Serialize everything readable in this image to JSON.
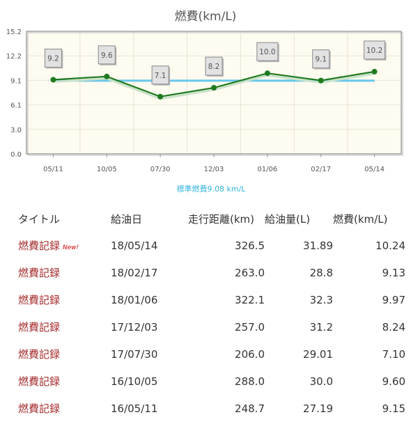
{
  "chart_data": {
    "type": "line",
    "title": "燃費(km/L)",
    "categories": [
      "05/11",
      "10/05",
      "07/30",
      "12/03",
      "01/06",
      "02/17",
      "05/14"
    ],
    "series": [
      {
        "values": [
          9.2,
          9.6,
          7.1,
          8.2,
          10.0,
          9.1,
          10.2
        ],
        "labels": [
          "9.2",
          "9.6",
          "7.1",
          "8.2",
          "10.0",
          "9.1",
          "10.2"
        ]
      }
    ],
    "standard": {
      "value": 9.08,
      "label": "標準燃費9.08 km/L"
    },
    "yticks": [
      "0.0",
      "3.0",
      "6.1",
      "9.1",
      "12.2",
      "15.2"
    ],
    "ylim": [
      0,
      15.2
    ],
    "colors": {
      "line": "#1f7a1f",
      "standard": "#66c6ec",
      "plot_bg": "#fefbf0"
    }
  },
  "table": {
    "headers": [
      "タイトル",
      "給油日",
      "走行距離(km)",
      "給油量(L)",
      "燃費(km/L)"
    ],
    "rows": [
      {
        "title": "燃費記録",
        "badge": "New!",
        "date": "18/05/14",
        "distance": "326.5",
        "fuel": "31.89",
        "efficiency": "10.24"
      },
      {
        "title": "燃費記録",
        "date": "18/02/17",
        "distance": "263.0",
        "fuel": "28.8",
        "efficiency": "9.13"
      },
      {
        "title": "燃費記録",
        "date": "18/01/06",
        "distance": "322.1",
        "fuel": "32.3",
        "efficiency": "9.97"
      },
      {
        "title": "燃費記録",
        "date": "17/12/03",
        "distance": "257.0",
        "fuel": "31.2",
        "efficiency": "8.24"
      },
      {
        "title": "燃費記録",
        "date": "17/07/30",
        "distance": "206.0",
        "fuel": "29.01",
        "efficiency": "7.10"
      },
      {
        "title": "燃費記録",
        "date": "16/10/05",
        "distance": "288.0",
        "fuel": "30.0",
        "efficiency": "9.60"
      },
      {
        "title": "燃費記録",
        "date": "16/05/11",
        "distance": "248.7",
        "fuel": "27.19",
        "efficiency": "9.15"
      }
    ]
  }
}
